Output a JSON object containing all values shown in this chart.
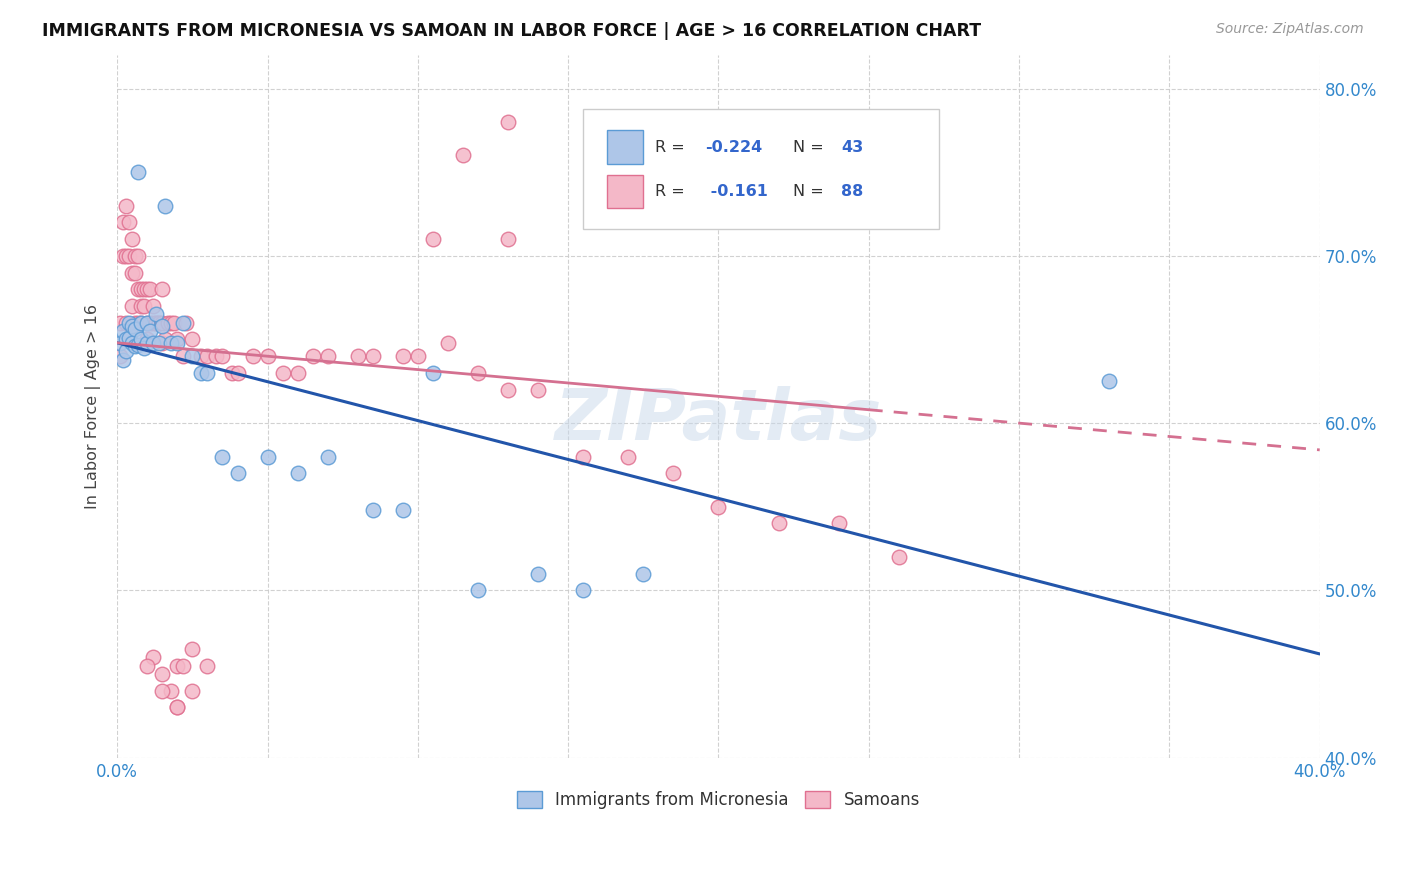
{
  "title": "IMMIGRANTS FROM MICRONESIA VS SAMOAN IN LABOR FORCE | AGE > 16 CORRELATION CHART",
  "source": "Source: ZipAtlas.com",
  "ylabel": "In Labor Force | Age > 16",
  "x_min": 0.0,
  "x_max": 0.4,
  "y_min": 0.4,
  "y_max": 0.82,
  "x_ticks": [
    0.0,
    0.05,
    0.1,
    0.15,
    0.2,
    0.25,
    0.3,
    0.35,
    0.4
  ],
  "y_ticks": [
    0.4,
    0.5,
    0.6,
    0.7,
    0.8
  ],
  "micronesia_color": "#aec6e8",
  "samoan_color": "#f4b8c8",
  "micronesia_edge": "#5b9bd5",
  "samoan_edge": "#e07090",
  "trend_micronesia_color": "#2255aa",
  "trend_samoan_color": "#d47090",
  "watermark": "ZIPatlas",
  "mic_trend_x0": 0.0,
  "mic_trend_y0": 0.648,
  "mic_trend_x1": 0.4,
  "mic_trend_y1": 0.462,
  "sam_trend_x0": 0.0,
  "sam_trend_y0": 0.648,
  "sam_trend_x1": 0.25,
  "sam_trend_y1": 0.608,
  "micronesia_x": [
    0.001,
    0.002,
    0.002,
    0.003,
    0.003,
    0.004,
    0.004,
    0.005,
    0.005,
    0.006,
    0.006,
    0.007,
    0.007,
    0.008,
    0.008,
    0.009,
    0.01,
    0.01,
    0.011,
    0.012,
    0.013,
    0.014,
    0.015,
    0.016,
    0.018,
    0.02,
    0.022,
    0.025,
    0.028,
    0.03,
    0.035,
    0.04,
    0.05,
    0.06,
    0.07,
    0.085,
    0.095,
    0.105,
    0.12,
    0.14,
    0.155,
    0.175,
    0.33
  ],
  "micronesia_y": [
    0.648,
    0.655,
    0.638,
    0.65,
    0.643,
    0.651,
    0.66,
    0.648,
    0.658,
    0.646,
    0.656,
    0.75,
    0.647,
    0.65,
    0.66,
    0.645,
    0.66,
    0.648,
    0.655,
    0.648,
    0.665,
    0.648,
    0.658,
    0.73,
    0.648,
    0.648,
    0.66,
    0.64,
    0.63,
    0.63,
    0.58,
    0.57,
    0.58,
    0.57,
    0.58,
    0.548,
    0.548,
    0.63,
    0.5,
    0.51,
    0.5,
    0.51,
    0.625
  ],
  "samoan_x": [
    0.001,
    0.001,
    0.002,
    0.002,
    0.003,
    0.003,
    0.003,
    0.004,
    0.004,
    0.005,
    0.005,
    0.005,
    0.006,
    0.006,
    0.006,
    0.007,
    0.007,
    0.007,
    0.008,
    0.008,
    0.008,
    0.009,
    0.009,
    0.01,
    0.01,
    0.01,
    0.011,
    0.011,
    0.012,
    0.012,
    0.013,
    0.013,
    0.014,
    0.014,
    0.015,
    0.015,
    0.015,
    0.016,
    0.017,
    0.018,
    0.019,
    0.02,
    0.022,
    0.023,
    0.025,
    0.028,
    0.03,
    0.033,
    0.035,
    0.038,
    0.04,
    0.045,
    0.05,
    0.055,
    0.06,
    0.065,
    0.07,
    0.08,
    0.085,
    0.095,
    0.1,
    0.11,
    0.12,
    0.13,
    0.14,
    0.155,
    0.17,
    0.185,
    0.2,
    0.22,
    0.24,
    0.26,
    0.115,
    0.13,
    0.105,
    0.13,
    0.02,
    0.025,
    0.025,
    0.02,
    0.018,
    0.015,
    0.012,
    0.01,
    0.02,
    0.03,
    0.022,
    0.015
  ],
  "samoan_y": [
    0.66,
    0.64,
    0.72,
    0.7,
    0.73,
    0.7,
    0.66,
    0.72,
    0.7,
    0.71,
    0.69,
    0.67,
    0.69,
    0.7,
    0.66,
    0.68,
    0.7,
    0.66,
    0.68,
    0.67,
    0.66,
    0.68,
    0.67,
    0.66,
    0.68,
    0.65,
    0.66,
    0.68,
    0.67,
    0.66,
    0.66,
    0.66,
    0.66,
    0.66,
    0.648,
    0.66,
    0.68,
    0.65,
    0.66,
    0.66,
    0.66,
    0.65,
    0.64,
    0.66,
    0.65,
    0.64,
    0.64,
    0.64,
    0.64,
    0.63,
    0.63,
    0.64,
    0.64,
    0.63,
    0.63,
    0.64,
    0.64,
    0.64,
    0.64,
    0.64,
    0.64,
    0.648,
    0.63,
    0.62,
    0.62,
    0.58,
    0.58,
    0.57,
    0.55,
    0.54,
    0.54,
    0.52,
    0.76,
    0.78,
    0.71,
    0.71,
    0.455,
    0.465,
    0.44,
    0.43,
    0.44,
    0.45,
    0.46,
    0.455,
    0.43,
    0.455,
    0.455,
    0.44
  ]
}
